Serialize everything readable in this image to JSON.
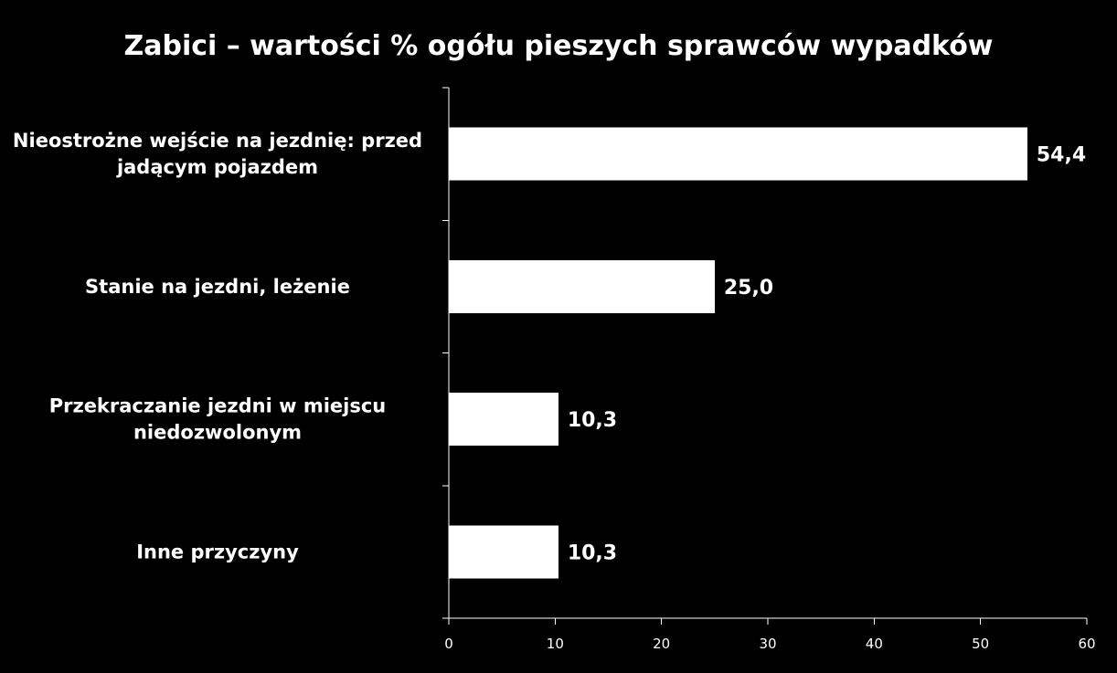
{
  "chart_data": {
    "type": "bar",
    "orientation": "horizontal",
    "title": "Zabici – wartości % ogółu pieszych sprawców wypadków",
    "categories": [
      [
        "Nieostrożne wejście na jezdnię: przed",
        "jadącym pojazdem"
      ],
      [
        "Stanie na jezdni, leżenie"
      ],
      [
        "Przekraczanie jezdni w miejscu",
        "niedozwolonym"
      ],
      [
        "Inne przyczyny"
      ]
    ],
    "values": [
      54.4,
      25.0,
      10.3,
      10.3
    ],
    "value_labels": [
      "54,4",
      "25,0",
      "10,3",
      "10,3"
    ],
    "xlim": [
      0,
      60
    ],
    "xticks": [
      0,
      10,
      20,
      30,
      40,
      50,
      60
    ],
    "xlabel": "",
    "ylabel": "",
    "grid": false,
    "legend": "none",
    "colors": {
      "background": "#000000",
      "bar": "#ffffff",
      "text": "#ffffff",
      "axis": "#ffffff"
    }
  }
}
